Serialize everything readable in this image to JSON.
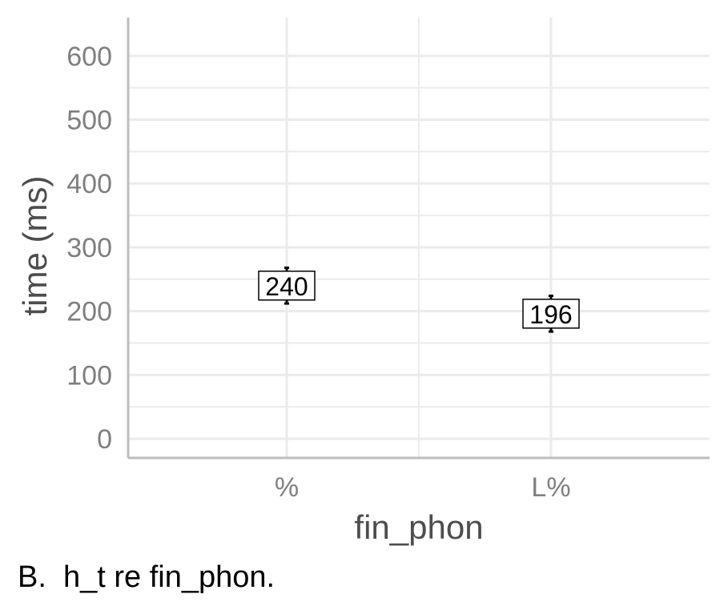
{
  "chart_data": {
    "type": "scatter",
    "title": "",
    "xlabel": "fin_phon",
    "ylabel": "time (ms)",
    "categories": [
      "%",
      "L%"
    ],
    "points": [
      {
        "category": "%",
        "value": 240,
        "label": "240",
        "err_low": 212,
        "err_high": 268
      },
      {
        "category": "L%",
        "value": 196,
        "label": "196",
        "err_low": 168,
        "err_high": 224
      }
    ],
    "ylim": [
      -30,
      660
    ],
    "yticks": [
      0,
      100,
      200,
      300,
      400,
      500,
      600
    ],
    "grid": true,
    "legend": "none"
  },
  "caption": "B.  h_t re fin_phon.",
  "colors": {
    "grid": "#ebebeb",
    "axis": "#bdbdbd",
    "tick_text": "#7f7f7f",
    "title_text": "#4d4d4d",
    "mark": "#000000"
  }
}
